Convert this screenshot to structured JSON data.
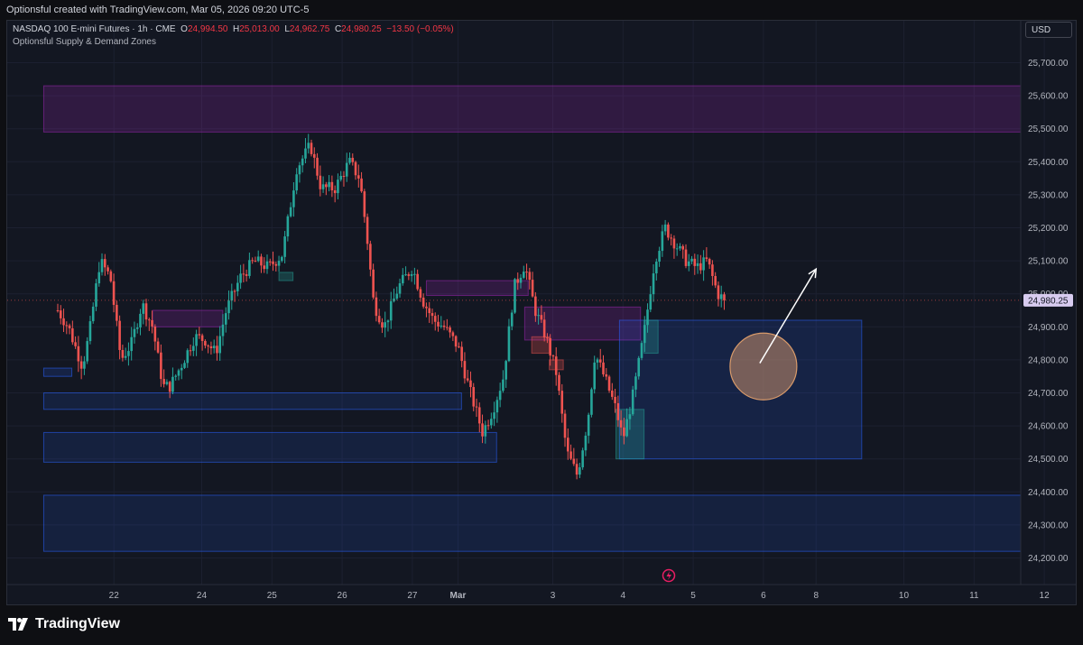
{
  "header": {
    "caption": "Optionsful created with TradingView.com, Mar 05, 2026 09:20 UTC-5"
  },
  "legend": {
    "symbol": "NASDAQ 100 E-mini Futures · 1h · CME",
    "o_label": "O",
    "o": "24,994.50",
    "h_label": "H",
    "h": "25,013.00",
    "l_label": "L",
    "l": "24,962.75",
    "c_label": "C",
    "c": "24,980.25",
    "change": "−13.50 (−0.05%)",
    "indicator": "Optionsful Supply & Demand Zones"
  },
  "currency": "USD",
  "brand": {
    "name": "TradingView",
    "icon": "tradingview-logo-icon"
  },
  "colors": {
    "background": "#131722",
    "up": "#26a69a",
    "down": "#ef5350",
    "supply_zone": "#9c27b0",
    "demand_zone": "#2962ff",
    "price_tag_bg": "#d8ccf0",
    "circle": "#c8906a",
    "arrow": "#ffffff"
  },
  "chart_data": {
    "type": "candlestick",
    "title": "NASDAQ 100 E-mini Futures · 1h · CME",
    "y_ticks": [
      "25,700.00",
      "25,600.00",
      "25,500.00",
      "25,400.00",
      "25,300.00",
      "25,200.00",
      "25,100.00",
      "25,000.00",
      "24,900.00",
      "24,800.00",
      "24,700.00",
      "24,600.00",
      "24,500.00",
      "24,400.00",
      "24,300.00",
      "24,200.00"
    ],
    "y_tick_values": [
      25700,
      25600,
      25500,
      25400,
      25300,
      25200,
      25100,
      25000,
      24900,
      24800,
      24700,
      24600,
      24500,
      24400,
      24300,
      24200
    ],
    "ylim": [
      24200,
      25700
    ],
    "x_ticks": [
      {
        "label": "22",
        "t": 0.8
      },
      {
        "label": "24",
        "t": 2.05
      },
      {
        "label": "25",
        "t": 3.05
      },
      {
        "label": "26",
        "t": 4.05
      },
      {
        "label": "27",
        "t": 5.05
      },
      {
        "label": "Mar",
        "t": 5.7,
        "bold": true
      },
      {
        "label": "3",
        "t": 7.05
      },
      {
        "label": "4",
        "t": 8.05
      },
      {
        "label": "5",
        "t": 9.05
      },
      {
        "label": "6",
        "t": 10.05
      },
      {
        "label": "8",
        "t": 10.8
      },
      {
        "label": "10",
        "t": 12.05
      },
      {
        "label": "11",
        "t": 13.05
      },
      {
        "label": "12",
        "t": 14.05
      }
    ],
    "last_price": 24980.25,
    "last_price_label": "24,980.25",
    "path_points": [
      [
        0.0,
        24950
      ],
      [
        0.15,
        24900
      ],
      [
        0.35,
        24780
      ],
      [
        0.45,
        24880
      ],
      [
        0.6,
        25100
      ],
      [
        0.75,
        25050
      ],
      [
        0.9,
        24800
      ],
      [
        1.05,
        24850
      ],
      [
        1.2,
        24970
      ],
      [
        1.35,
        24900
      ],
      [
        1.5,
        24720
      ],
      [
        1.6,
        24720
      ],
      [
        1.75,
        24780
      ],
      [
        1.95,
        24870
      ],
      [
        2.1,
        24860
      ],
      [
        2.25,
        24820
      ],
      [
        2.4,
        24950
      ],
      [
        2.6,
        25050
      ],
      [
        2.8,
        25100
      ],
      [
        3.0,
        25080
      ],
      [
        3.2,
        25120
      ],
      [
        3.4,
        25380
      ],
      [
        3.6,
        25450
      ],
      [
        3.75,
        25320
      ],
      [
        3.95,
        25320
      ],
      [
        4.15,
        25400
      ],
      [
        4.3,
        25350
      ],
      [
        4.4,
        25180
      ],
      [
        4.5,
        24970
      ],
      [
        4.65,
        24900
      ],
      [
        4.85,
        25020
      ],
      [
        5.05,
        25080
      ],
      [
        5.2,
        24980
      ],
      [
        5.35,
        24920
      ],
      [
        5.5,
        24900
      ],
      [
        5.7,
        24840
      ],
      [
        5.85,
        24720
      ],
      [
        6.05,
        24580
      ],
      [
        6.2,
        24650
      ],
      [
        6.35,
        24750
      ],
      [
        6.5,
        25020
      ],
      [
        6.65,
        25090
      ],
      [
        6.8,
        24950
      ],
      [
        6.95,
        24870
      ],
      [
        7.1,
        24760
      ],
      [
        7.25,
        24520
      ],
      [
        7.4,
        24450
      ],
      [
        7.55,
        24620
      ],
      [
        7.65,
        24820
      ],
      [
        7.8,
        24740
      ],
      [
        7.95,
        24650
      ],
      [
        8.05,
        24560
      ],
      [
        8.2,
        24700
      ],
      [
        8.35,
        24880
      ],
      [
        8.5,
        25100
      ],
      [
        8.65,
        25200
      ],
      [
        8.8,
        25150
      ],
      [
        8.95,
        25100
      ],
      [
        9.1,
        25080
      ],
      [
        9.25,
        25100
      ],
      [
        9.4,
        25000
      ],
      [
        9.5,
        24980
      ]
    ],
    "zones": [
      {
        "kind": "supply",
        "t0": -0.2,
        "t1": 14.5,
        "y0": 25490,
        "y1": 25630
      },
      {
        "kind": "supply",
        "t0": 1.35,
        "t1": 2.35,
        "y0": 24900,
        "y1": 24950
      },
      {
        "kind": "supply",
        "t0": 5.25,
        "t1": 6.7,
        "y0": 24995,
        "y1": 25040
      },
      {
        "kind": "supply",
        "t0": 6.65,
        "t1": 8.3,
        "y0": 24860,
        "y1": 24960
      },
      {
        "kind": "demand",
        "t0": -0.2,
        "t1": 0.2,
        "y0": 24750,
        "y1": 24775
      },
      {
        "kind": "demand",
        "t0": -0.2,
        "t1": 5.75,
        "y0": 24650,
        "y1": 24700
      },
      {
        "kind": "demand",
        "t0": -0.2,
        "t1": 6.25,
        "y0": 24490,
        "y1": 24580
      },
      {
        "kind": "demand",
        "t0": -0.2,
        "t1": 14.5,
        "y0": 24220,
        "y1": 24390
      },
      {
        "kind": "demand",
        "t0": 8.0,
        "t1": 11.45,
        "y0": 24500,
        "y1": 24920
      }
    ],
    "boxes": [
      {
        "kind": "up",
        "t0": 3.15,
        "t1": 3.35,
        "y0": 25040,
        "y1": 25065
      },
      {
        "kind": "down",
        "t0": 6.75,
        "t1": 7.0,
        "y0": 24820,
        "y1": 24870
      },
      {
        "kind": "down",
        "t0": 7.0,
        "t1": 7.2,
        "y0": 24770,
        "y1": 24800
      },
      {
        "kind": "up",
        "t0": 8.35,
        "t1": 8.55,
        "y0": 24820,
        "y1": 24920
      },
      {
        "kind": "up",
        "t0": 7.95,
        "t1": 8.35,
        "y0": 24500,
        "y1": 24650
      }
    ],
    "target_circle": {
      "t": 10.05,
      "v": 24780
    },
    "projection_arrow": {
      "from": [
        10.05,
        24790
      ],
      "to": [
        10.8,
        25075
      ]
    }
  }
}
